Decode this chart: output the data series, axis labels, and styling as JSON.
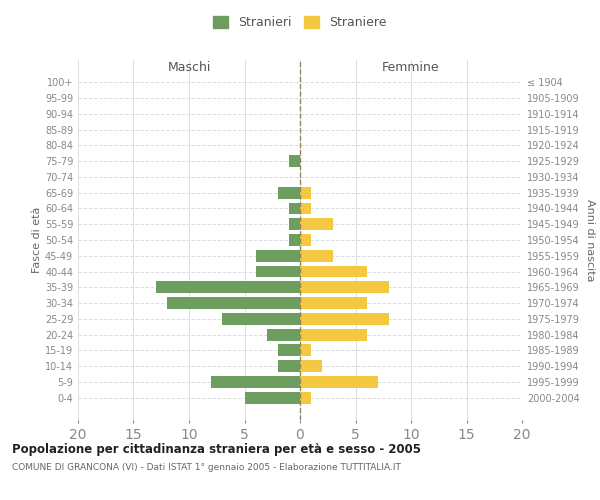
{
  "age_groups_bottom_to_top": [
    "0-4",
    "5-9",
    "10-14",
    "15-19",
    "20-24",
    "25-29",
    "30-34",
    "35-39",
    "40-44",
    "45-49",
    "50-54",
    "55-59",
    "60-64",
    "65-69",
    "70-74",
    "75-79",
    "80-84",
    "85-89",
    "90-94",
    "95-99",
    "100+"
  ],
  "birth_years_bottom_to_top": [
    "2000-2004",
    "1995-1999",
    "1990-1994",
    "1985-1989",
    "1980-1984",
    "1975-1979",
    "1970-1974",
    "1965-1969",
    "1960-1964",
    "1955-1959",
    "1950-1954",
    "1945-1949",
    "1940-1944",
    "1935-1939",
    "1930-1934",
    "1925-1929",
    "1920-1924",
    "1915-1919",
    "1910-1914",
    "1905-1909",
    "≤ 1904"
  ],
  "maschi": [
    5,
    8,
    2,
    2,
    3,
    7,
    12,
    13,
    4,
    4,
    1,
    1,
    1,
    2,
    0,
    1,
    0,
    0,
    0,
    0,
    0
  ],
  "femmine": [
    1,
    7,
    2,
    1,
    6,
    8,
    6,
    8,
    6,
    3,
    1,
    3,
    1,
    1,
    0,
    0,
    0,
    0,
    0,
    0,
    0
  ],
  "maschi_color": "#6e9e5f",
  "femmine_color": "#f5c842",
  "bar_height": 0.75,
  "xlim": [
    -20,
    20
  ],
  "title": "Popolazione per cittadinanza straniera per età e sesso - 2005",
  "subtitle": "COMUNE DI GRANCONA (VI) - Dati ISTAT 1° gennaio 2005 - Elaborazione TUTTITALIA.IT",
  "legend_stranieri": "Stranieri",
  "legend_straniere": "Straniere",
  "left_header": "Maschi",
  "right_header": "Femmine",
  "left_yaxis_label": "Fasce di età",
  "right_yaxis_label": "Anni di nascita",
  "background_color": "#ffffff",
  "grid_color": "#dddddd",
  "dashed_line_color": "#8a8a5c",
  "text_color": "#888888"
}
